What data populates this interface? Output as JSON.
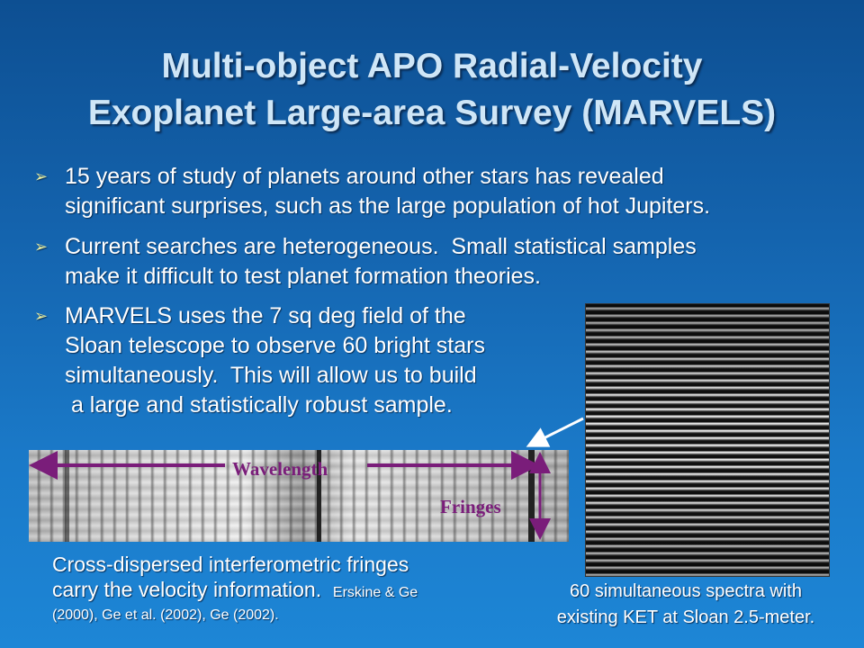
{
  "title": {
    "line1": "Multi-object APO Radial-Velocity",
    "line2": "Exoplanet Large-area Survey (MARVELS)"
  },
  "bullet_icon": "arrow-bullet-icon",
  "bullets": [
    {
      "lines": [
        "15 years of study of planets around other stars has revealed",
        "significant surprises, such as the large population of hot Jupiters."
      ]
    },
    {
      "lines": [
        "Current searches are heterogeneous.  Small statistical samples",
        "make it difficult to test planet formation theories."
      ]
    },
    {
      "lines": [
        "MARVELS uses the 7 sq deg field of the",
        "Sloan telescope to observe 60 bright stars",
        "simultaneously.  This will allow us to build",
        " a large and statistically robust sample."
      ]
    }
  ],
  "fringe_image": {
    "wavelength_label": "Wavelength",
    "fringes_label": "Fringes"
  },
  "fringe_caption": {
    "line1": "Cross-dispersed interferometric fringes",
    "line2": "carry the velocity information.",
    "ref1": "Erskine & Ge",
    "line3": "(2000), Ge et al. (2002), Ge (2002)."
  },
  "spectra_caption": {
    "line1": "60 simultaneous spectra with",
    "line2": "existing KET at Sloan 2.5-meter."
  },
  "colors": {
    "background": "#1463ad",
    "title": "#cfe6f7",
    "annotation": "#7a1d7a",
    "bullet": "#e6eca0"
  }
}
